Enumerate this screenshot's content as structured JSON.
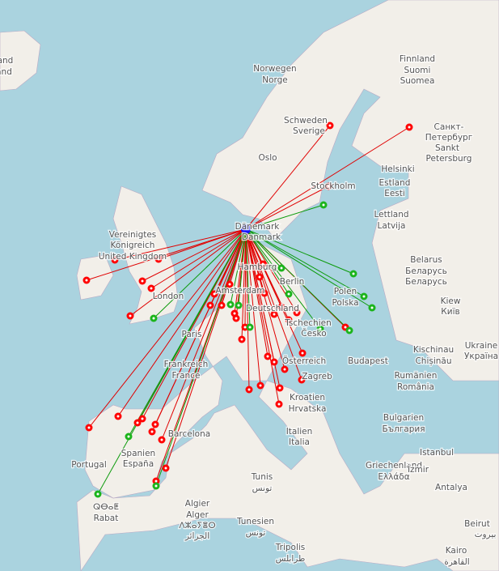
{
  "labels": [
    "land",
    "and",
    "Finnland",
    "Suomi",
    "Suomea",
    "Norwegen",
    "Norge",
    "Schweden",
    "Sverige",
    "Санкт-",
    "Петербург",
    "Sankt",
    "Petersburg",
    "Oslo",
    "Helsinki",
    "Stockholm",
    "Estland",
    "Eesti",
    "Lettland",
    "Latvija",
    "Dänemark",
    "Danmark",
    "Vereinigtes",
    "Königreich",
    "United Kingdom",
    "Belarus",
    "Беларусь",
    "Беларусь",
    "Hamburg",
    "Berlin",
    "Polen",
    "Polska",
    "London",
    "Amsterdam",
    "Deutschland",
    "Kiew",
    "Київ",
    "Paris",
    "Tschechien",
    "Česko",
    "Kischinau",
    "Chișinău",
    "Ukraine",
    "Україна",
    "Österreich",
    "Budapest",
    "Frankreich",
    "France",
    "Zagreb",
    "Rumänien",
    "România",
    "Kroatien",
    "Hrvatska",
    "Bulgarien",
    "България",
    "Barcelona",
    "Italien",
    "Italia",
    "Spanien",
    "España",
    "Portugal",
    "Istanbul",
    "Griechenland",
    "Ελλάδα",
    "İzmir",
    "Antalya",
    "Tunis",
    "تونس",
    "Algier",
    "Alger",
    "ⴷⵣⴰⵢⴻⵔ",
    "الجزائر",
    "ⵕⴱⴰⵟ",
    "Rabat",
    "Tunesien",
    "تونس",
    "Tripolis",
    "طرابلس",
    "Beirut",
    "بيروت",
    "Kairo",
    "القاهرة"
  ]
}
